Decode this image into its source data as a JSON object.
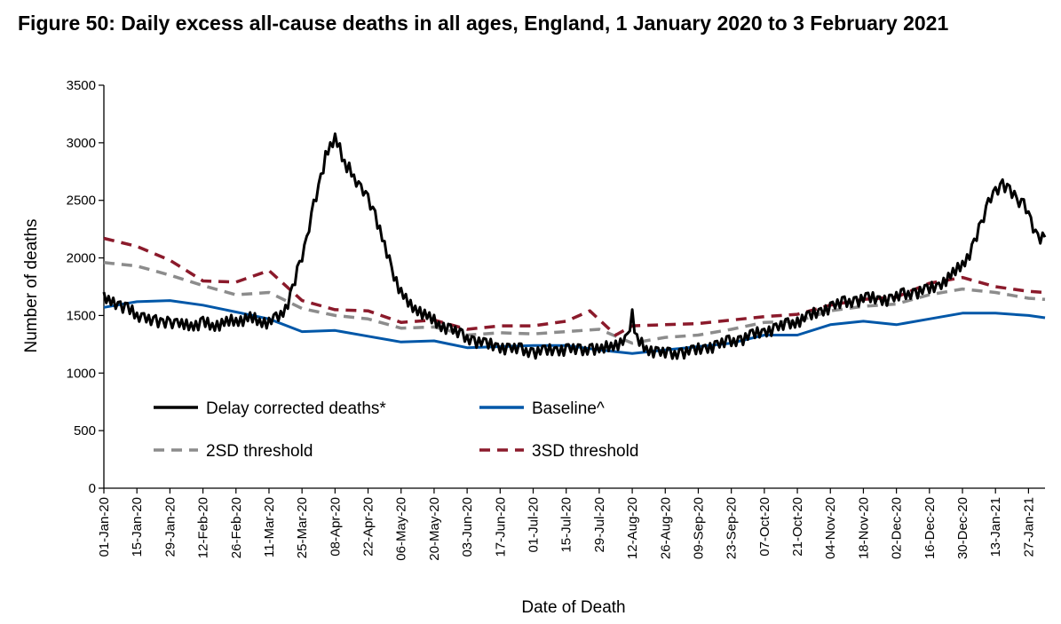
{
  "chart_data": {
    "type": "line",
    "title": "Figure 50: Daily excess all-cause deaths in all ages, England, 1 January 2020 to 3 February 2021",
    "xlabel": "Date of Death",
    "ylabel": "Number of deaths",
    "ylim": [
      0,
      3500
    ],
    "yticks": [
      0,
      500,
      1000,
      1500,
      2000,
      2500,
      3000,
      3500
    ],
    "x_range": [
      "2020-01-01",
      "2021-02-03"
    ],
    "x_tick_labels": [
      "01-Jan-20",
      "15-Jan-20",
      "29-Jan-20",
      "12-Feb-20",
      "26-Feb-20",
      "11-Mar-20",
      "25-Mar-20",
      "08-Apr-20",
      "22-Apr-20",
      "06-May-20",
      "20-May-20",
      "03-Jun-20",
      "17-Jun-20",
      "01-Jul-20",
      "15-Jul-20",
      "29-Jul-20",
      "12-Aug-20",
      "26-Aug-20",
      "09-Sep-20",
      "23-Sep-20",
      "07-Oct-20",
      "21-Oct-20",
      "04-Nov-20",
      "18-Nov-20",
      "02-Dec-20",
      "16-Dec-20",
      "30-Dec-20",
      "13-Jan-21",
      "27-Jan-21"
    ],
    "grid": false,
    "legend_position": "inside-bottom-left",
    "series": [
      {
        "name": "Delay corrected deaths*",
        "color": "#000000",
        "style": "solid",
        "x": [
          "2020-01-01",
          "2020-01-03",
          "2020-01-05",
          "2020-01-08",
          "2020-01-11",
          "2020-01-15",
          "2020-01-18",
          "2020-01-20",
          "2020-01-23",
          "2020-01-26",
          "2020-01-29",
          "2020-02-01",
          "2020-02-05",
          "2020-02-09",
          "2020-02-12",
          "2020-02-16",
          "2020-02-20",
          "2020-02-24",
          "2020-02-28",
          "2020-03-03",
          "2020-03-07",
          "2020-03-11",
          "2020-03-14",
          "2020-03-18",
          "2020-03-21",
          "2020-03-24",
          "2020-03-27",
          "2020-03-30",
          "2020-04-02",
          "2020-04-04",
          "2020-04-06",
          "2020-04-08",
          "2020-04-10",
          "2020-04-12",
          "2020-04-14",
          "2020-04-16",
          "2020-04-19",
          "2020-04-22",
          "2020-04-25",
          "2020-04-29",
          "2020-05-02",
          "2020-05-06",
          "2020-05-10",
          "2020-05-14",
          "2020-05-18",
          "2020-05-22",
          "2020-05-27",
          "2020-06-01",
          "2020-06-06",
          "2020-06-11",
          "2020-06-16",
          "2020-06-21",
          "2020-06-26",
          "2020-07-01",
          "2020-07-06",
          "2020-07-11",
          "2020-07-16",
          "2020-07-21",
          "2020-07-26",
          "2020-07-30",
          "2020-08-03",
          "2020-08-07",
          "2020-08-10",
          "2020-08-12",
          "2020-08-14",
          "2020-08-18",
          "2020-08-23",
          "2020-08-28",
          "2020-09-02",
          "2020-09-07",
          "2020-09-12",
          "2020-09-17",
          "2020-09-22",
          "2020-09-27",
          "2020-10-02",
          "2020-10-07",
          "2020-10-12",
          "2020-10-17",
          "2020-10-21",
          "2020-10-26",
          "2020-10-31",
          "2020-11-05",
          "2020-11-10",
          "2020-11-15",
          "2020-11-20",
          "2020-11-25",
          "2020-11-30",
          "2020-12-05",
          "2020-12-10",
          "2020-12-15",
          "2020-12-20",
          "2020-12-24",
          "2020-12-28",
          "2021-01-01",
          "2021-01-04",
          "2021-01-07",
          "2021-01-10",
          "2021-01-13",
          "2021-01-16",
          "2021-01-19",
          "2021-01-22",
          "2021-01-25",
          "2021-01-28",
          "2021-01-31",
          "2021-02-03"
        ],
        "values": [
          1680,
          1630,
          1600,
          1590,
          1560,
          1500,
          1480,
          1450,
          1470,
          1420,
          1440,
          1430,
          1410,
          1420,
          1440,
          1410,
          1430,
          1450,
          1460,
          1480,
          1450,
          1440,
          1470,
          1560,
          1720,
          1950,
          2150,
          2450,
          2700,
          2880,
          2980,
          3040,
          2940,
          2820,
          2780,
          2700,
          2600,
          2500,
          2380,
          2100,
          1900,
          1700,
          1580,
          1540,
          1480,
          1420,
          1380,
          1320,
          1280,
          1250,
          1230,
          1210,
          1200,
          1180,
          1190,
          1200,
          1210,
          1190,
          1220,
          1200,
          1240,
          1260,
          1290,
          1520,
          1290,
          1210,
          1180,
          1160,
          1180,
          1190,
          1220,
          1240,
          1270,
          1290,
          1330,
          1360,
          1390,
          1420,
          1450,
          1490,
          1540,
          1580,
          1610,
          1630,
          1650,
          1640,
          1640,
          1680,
          1700,
          1720,
          1760,
          1830,
          1900,
          2000,
          2120,
          2300,
          2480,
          2560,
          2650,
          2580,
          2500,
          2470,
          2300,
          2180,
          2180
        ]
      },
      {
        "name": "Baseline^",
        "color": "#0057a8",
        "style": "solid",
        "x": [
          "2020-01-01",
          "2020-01-15",
          "2020-01-29",
          "2020-02-12",
          "2020-02-26",
          "2020-03-11",
          "2020-03-25",
          "2020-04-08",
          "2020-04-22",
          "2020-05-06",
          "2020-05-20",
          "2020-06-03",
          "2020-06-17",
          "2020-07-01",
          "2020-07-15",
          "2020-07-29",
          "2020-08-12",
          "2020-08-26",
          "2020-09-09",
          "2020-09-23",
          "2020-10-07",
          "2020-10-21",
          "2020-11-04",
          "2020-11-18",
          "2020-12-02",
          "2020-12-16",
          "2020-12-30",
          "2021-01-13",
          "2021-01-27",
          "2021-02-03"
        ],
        "values": [
          1570,
          1620,
          1630,
          1590,
          1530,
          1470,
          1360,
          1370,
          1320,
          1270,
          1280,
          1220,
          1230,
          1240,
          1240,
          1200,
          1170,
          1200,
          1230,
          1260,
          1330,
          1330,
          1420,
          1450,
          1420,
          1470,
          1520,
          1520,
          1500,
          1480
        ]
      },
      {
        "name": "2SD threshold",
        "color": "#8c8c8c",
        "style": "dashed",
        "x": [
          "2020-01-01",
          "2020-01-15",
          "2020-01-29",
          "2020-02-12",
          "2020-02-26",
          "2020-03-11",
          "2020-03-25",
          "2020-04-08",
          "2020-04-22",
          "2020-05-06",
          "2020-05-20",
          "2020-06-03",
          "2020-06-17",
          "2020-07-01",
          "2020-07-15",
          "2020-07-29",
          "2020-08-12",
          "2020-08-26",
          "2020-09-09",
          "2020-09-23",
          "2020-10-07",
          "2020-10-21",
          "2020-11-04",
          "2020-11-18",
          "2020-12-02",
          "2020-12-16",
          "2020-12-30",
          "2021-01-13",
          "2021-01-27",
          "2021-02-03"
        ],
        "values": [
          1960,
          1930,
          1850,
          1760,
          1680,
          1700,
          1560,
          1500,
          1470,
          1390,
          1400,
          1330,
          1350,
          1340,
          1360,
          1380,
          1260,
          1310,
          1330,
          1380,
          1440,
          1450,
          1540,
          1580,
          1600,
          1680,
          1730,
          1700,
          1650,
          1640
        ]
      },
      {
        "name": "3SD threshold",
        "color": "#8b1a2b",
        "style": "dashed",
        "x": [
          "2020-01-01",
          "2020-01-15",
          "2020-01-29",
          "2020-02-12",
          "2020-02-26",
          "2020-03-11",
          "2020-03-25",
          "2020-04-08",
          "2020-04-22",
          "2020-05-06",
          "2020-05-20",
          "2020-06-03",
          "2020-06-17",
          "2020-07-01",
          "2020-07-15",
          "2020-07-25",
          "2020-08-05",
          "2020-08-12",
          "2020-08-26",
          "2020-09-09",
          "2020-09-23",
          "2020-10-07",
          "2020-10-21",
          "2020-11-04",
          "2020-11-18",
          "2020-12-02",
          "2020-12-16",
          "2020-12-30",
          "2021-01-13",
          "2021-01-27",
          "2021-02-03"
        ],
        "values": [
          2170,
          2100,
          1980,
          1800,
          1790,
          1890,
          1630,
          1550,
          1540,
          1440,
          1460,
          1380,
          1410,
          1410,
          1450,
          1540,
          1330,
          1410,
          1420,
          1430,
          1460,
          1490,
          1510,
          1590,
          1640,
          1660,
          1780,
          1830,
          1750,
          1710,
          1700
        ]
      }
    ]
  }
}
